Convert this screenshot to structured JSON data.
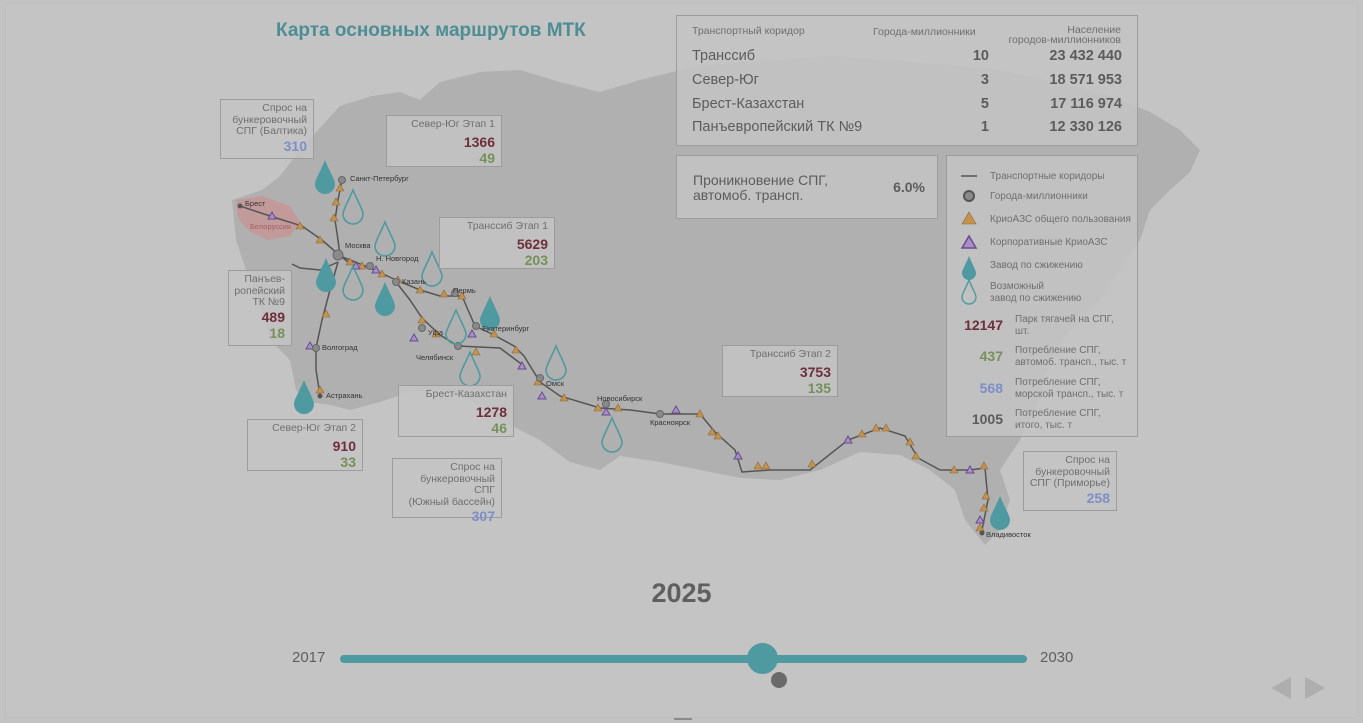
{
  "title": "Карта основных маршрутов МТК",
  "summary_table": {
    "headers": {
      "corridor": "Транспортный коридор",
      "cities": "Города-миллионники",
      "population_line1": "Население",
      "population_line2": "городов-миллионников"
    },
    "rows": [
      {
        "name": "Транссиб",
        "cities": "10",
        "population": "23 432 440"
      },
      {
        "name": "Север-Юг",
        "cities": "3",
        "population": "18 571 953"
      },
      {
        "name": "Брест-Казахстан",
        "cities": "5",
        "population": "17 116 974"
      },
      {
        "name": "Панъевропейский ТК №9",
        "cities": "1",
        "population": "12 330 126"
      }
    ]
  },
  "penetration": {
    "line1": "Проникновение СПГ,",
    "line2": "автомоб. трансп.",
    "value": "6.0%"
  },
  "legend": {
    "corridors": "Транспортные коридоры",
    "cities": "Города-миллионники",
    "public_stations": "КриоАЗС общего пользования",
    "corporate_stations": "Корпоративные КриоАЗС",
    "plant": "Завод по сжижению",
    "possible_plant_line1": "Возможный",
    "possible_plant_line2": "завод по сжижению",
    "fleet_value": "12147",
    "fleet_line1": "Парк тягачей на СПГ,",
    "fleet_line2": "шт.",
    "auto_value": "437",
    "auto_line1": "Потребление СПГ,",
    "auto_line2": "автомоб. трансп., тыс. т",
    "sea_value": "568",
    "sea_line1": "Потребление СПГ,",
    "sea_line2": "морской трансп., тыс. т",
    "total_value": "1005",
    "total_line1": "Потребление СПГ,",
    "total_line2": "итого, тыс. т"
  },
  "info_boxes": {
    "baltic": {
      "l1": "Спрос на",
      "l2": "бункеровочный",
      "l3": "СПГ (Балтика)",
      "value": "310"
    },
    "ns1": {
      "l1": "Север-Юг Этап 1",
      "v1": "1366",
      "v2": "49"
    },
    "ts1": {
      "l1": "Транссиб Этап 1",
      "v1": "5629",
      "v2": "203"
    },
    "pan": {
      "l1": "Панъев-",
      "l2": "ропейский",
      "l3": "ТК №9",
      "v1": "489",
      "v2": "18"
    },
    "bk": {
      "l1": "Брест-Казахстан",
      "v1": "1278",
      "v2": "46"
    },
    "ns2": {
      "l1": "Север-Юг Этап 2",
      "v1": "910",
      "v2": "33"
    },
    "south": {
      "l1": "Спрос на",
      "l2": "бункеровочный СПГ",
      "l3": "(Южный бассейн)",
      "value": "307"
    },
    "ts2": {
      "l1": "Транссиб Этап 2",
      "v1": "3753",
      "v2": "135"
    },
    "primorye": {
      "l1": "Спрос на",
      "l2": "бункеровочный",
      "l3": "СПГ (Приморье)",
      "value": "258"
    }
  },
  "cities": {
    "brest": "Брест",
    "belarus": "Белоруссия",
    "spb": "Санкт-Петербург",
    "moscow": "Москва",
    "nnovgorod": "Н. Новгород",
    "kazan": "Казань",
    "perm": "Пермь",
    "ufa": "Уфа",
    "ekb": "Екатеринбург",
    "chel": "Челябинск",
    "volgograd": "Волгоград",
    "astrakhan": "Астрахань",
    "omsk": "Омск",
    "novosib": "Новосибирск",
    "krasnoyarsk": "Красноярск",
    "vladivostok": "Владивосток"
  },
  "timeline": {
    "year": "2025",
    "min": "2017",
    "max": "2030",
    "progress": 0.6154
  },
  "colors": {
    "accent": "#4e9aa0",
    "fleet": "#6e2e3c",
    "auto": "#76905a",
    "sea": "#7d8ec8",
    "total": "#5c5c5c",
    "public_station": "#c4924c",
    "corporate_station": "#7a5aa0"
  }
}
